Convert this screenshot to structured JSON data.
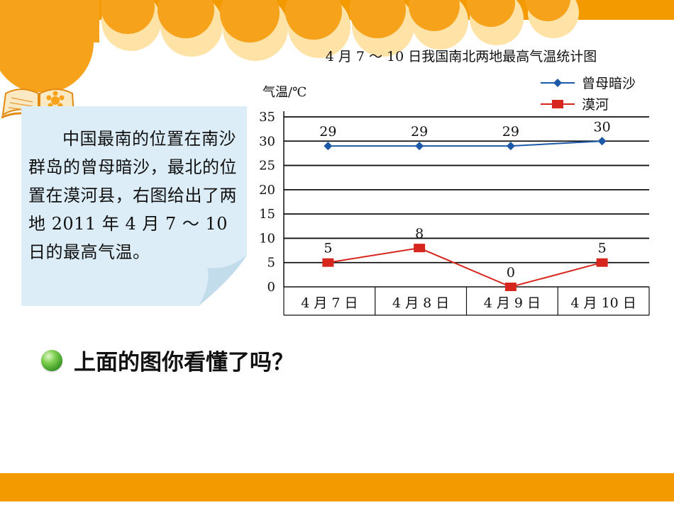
{
  "note": {
    "text": "中国最南的位置在南沙群岛的曾母暗沙，最北的位置在漠河县，右图给出了两地 2011 年 4 月 7 ～ 10 日的最高气温。"
  },
  "question": {
    "text": "上面的图你看懂了吗？"
  },
  "colors": {
    "accent_orange": "#f39a00",
    "note_background": "#dcedf7",
    "series_blue": "#1c5aa8",
    "series_red": "#d7261e"
  },
  "icons": [
    "open-book-icon",
    "green-bullet-icon"
  ],
  "chart_data": {
    "type": "line",
    "title": "4 月 7 ～ 10 日我国南北两地最高气温统计图",
    "ylabel": "气温/℃",
    "xlabel": "",
    "categories": [
      "4 月 7 日",
      "4 月 8 日",
      "4 月 9 日",
      "4 月 10 日"
    ],
    "ylim": [
      0,
      35
    ],
    "yticks": [
      "0",
      "5",
      "10",
      "15",
      "20",
      "25",
      "30",
      "35"
    ],
    "grid": true,
    "legend_position": "top-right",
    "series": [
      {
        "name": "曾母暗沙",
        "values": [
          29,
          29,
          29,
          30
        ],
        "marker": "diamond",
        "color": "#1c5aa8",
        "labels": [
          "29",
          "29",
          "29",
          "30"
        ]
      },
      {
        "name": "漠河",
        "values": [
          5,
          8,
          0,
          5
        ],
        "marker": "square",
        "color": "#d7261e",
        "labels": [
          "5",
          "8",
          "0",
          "5"
        ]
      }
    ]
  }
}
